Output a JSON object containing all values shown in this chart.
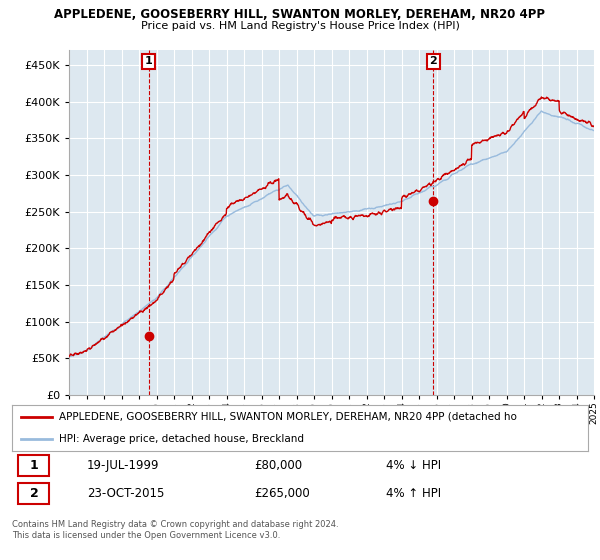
{
  "title": "APPLEDENE, GOOSEBERRY HILL, SWANTON MORLEY, DEREHAM, NR20 4PP",
  "subtitle": "Price paid vs. HM Land Registry's House Price Index (HPI)",
  "ylim": [
    0,
    470000
  ],
  "yticks": [
    0,
    50000,
    100000,
    150000,
    200000,
    250000,
    300000,
    350000,
    400000,
    450000
  ],
  "ytick_labels": [
    "£0",
    "£50K",
    "£100K",
    "£150K",
    "£200K",
    "£250K",
    "£300K",
    "£350K",
    "£400K",
    "£450K"
  ],
  "x_start_year": 1995,
  "x_end_year": 2025,
  "sale1_year": 1999.55,
  "sale1_price": 80000,
  "sale2_year": 2015.81,
  "sale2_price": 265000,
  "line_color_property": "#cc0000",
  "line_color_hpi": "#99bbdd",
  "plot_bg_color": "#dde8f0",
  "background_color": "#ffffff",
  "grid_color": "#ffffff",
  "legend_label_property": "APPLEDENE, GOOSEBERRY HILL, SWANTON MORLEY, DEREHAM, NR20 4PP (detached ho",
  "legend_label_hpi": "HPI: Average price, detached house, Breckland",
  "sale1_date": "19-JUL-1999",
  "sale1_hpi_text": "4% ↓ HPI",
  "sale2_date": "23-OCT-2015",
  "sale2_hpi_text": "4% ↑ HPI",
  "sale1_price_text": "£80,000",
  "sale2_price_text": "£265,000",
  "footer1": "Contains HM Land Registry data © Crown copyright and database right 2024.",
  "footer2": "This data is licensed under the Open Government Licence v3.0."
}
